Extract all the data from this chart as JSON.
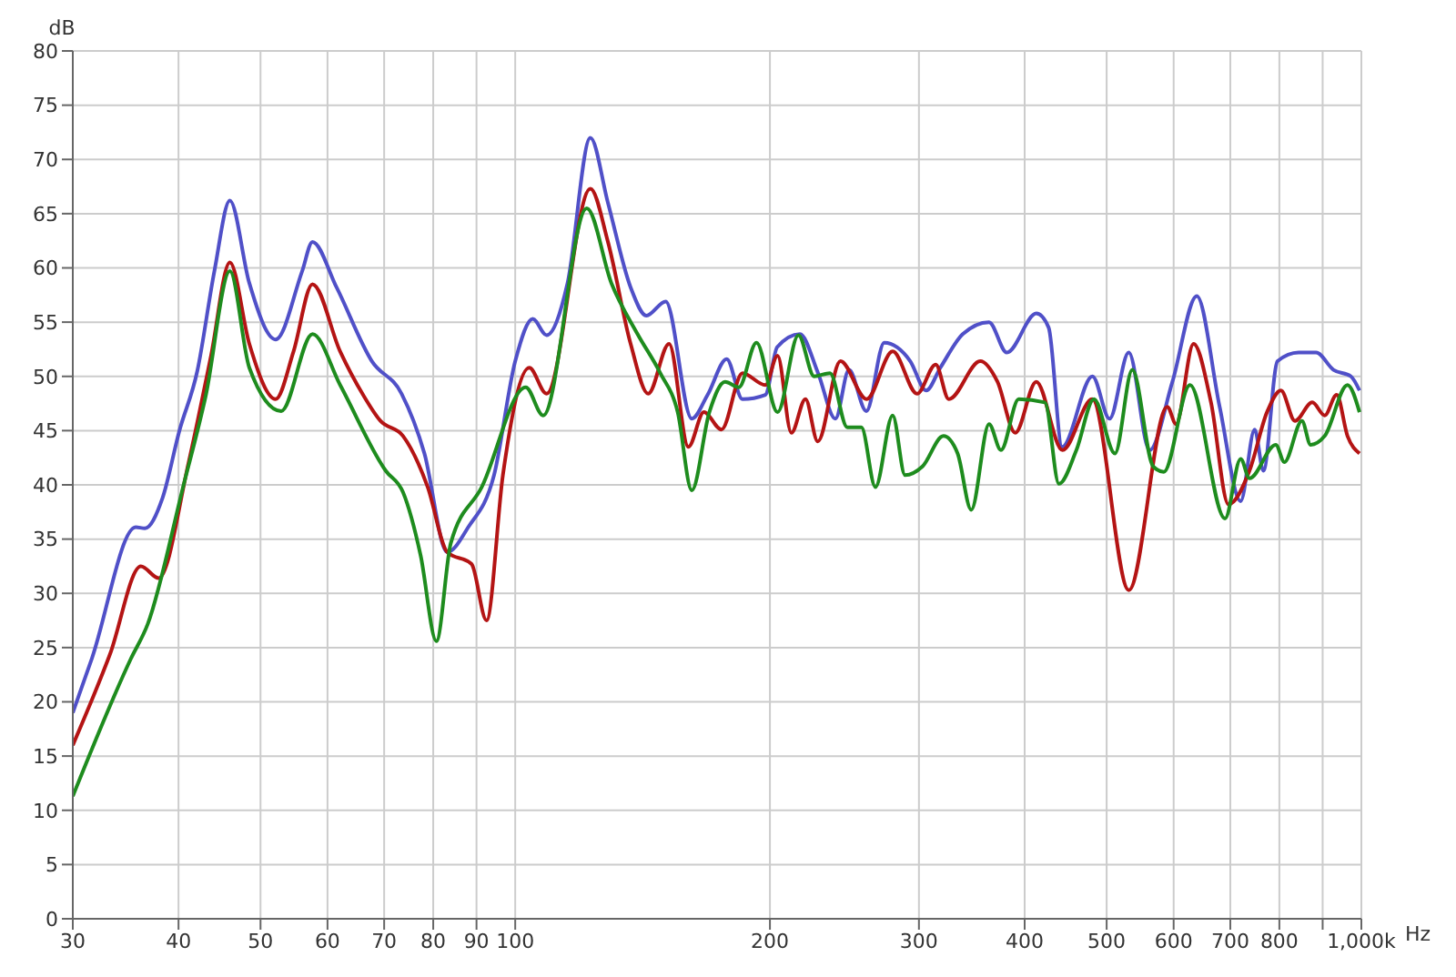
{
  "chart_data": {
    "type": "line",
    "xlabel": "Hz",
    "ylabel": "dB",
    "log": "x",
    "grid": true,
    "marker": "none",
    "line_style": "solid",
    "xlim": [
      30,
      1000
    ],
    "ylim": [
      0,
      80
    ],
    "xticks": [
      30,
      40,
      50,
      60,
      70,
      80,
      90,
      100,
      200,
      300,
      400,
      500,
      600,
      700,
      800,
      {
        "value": 900,
        "label": null
      },
      {
        "value": 1000,
        "label": "1,000k"
      }
    ],
    "yticks": [
      0,
      5,
      10,
      15,
      20,
      25,
      30,
      35,
      40,
      45,
      50,
      55,
      60,
      65,
      70,
      75,
      80
    ],
    "series": [
      {
        "color": "#5050c8",
        "x": [
          30,
          31.6,
          35.6,
          36.5,
          38.3,
          40.1,
          42.1,
          44.1,
          46,
          48.5,
          52.1,
          56,
          57.6,
          61.5,
          67.7,
          73.4,
          78.1,
          83.1,
          88,
          94.4,
          100,
          104.9,
          108.9,
          115.3,
          122.7,
          128.7,
          136.9,
          142.9,
          150.6,
          161.7,
          168.8,
          177.8,
          185.6,
          197.5,
          204,
          217,
          228,
          239,
          248,
          260,
          273,
          293,
          306,
          318,
          338,
          363,
          381,
          413,
          427,
          443,
          481,
          504,
          531,
          562,
          598,
          639,
          680,
          720,
          748,
          766,
          796,
          843,
          884,
          927,
          972,
          995
        ],
        "values": [
          19,
          24,
          36.1,
          36,
          38.8,
          45,
          50.5,
          59.7,
          66.2,
          58.6,
          53.4,
          59.7,
          62.4,
          58.2,
          51.4,
          48.4,
          42.9,
          33.8,
          36.1,
          40.9,
          51.4,
          55.3,
          53.8,
          58.6,
          72,
          66,
          58.2,
          55.6,
          56.9,
          46.1,
          48.3,
          51.6,
          47.9,
          48.3,
          52.7,
          53.9,
          50.3,
          46.1,
          50.6,
          46.8,
          53.1,
          51.4,
          48.7,
          50.8,
          53.9,
          55,
          52.2,
          55.8,
          54.5,
          43.5,
          50,
          46.1,
          52.2,
          43.2,
          49.5,
          57.4,
          47.2,
          38.5,
          45.1,
          41.3,
          51.4,
          52.2,
          52.2,
          50.6,
          50,
          48.7
        ]
      },
      {
        "color": "#b41414",
        "x": [
          30,
          33.2,
          36.1,
          37.9,
          41.1,
          43.7,
          46,
          48.5,
          52.1,
          54.7,
          57.6,
          62.1,
          66.1,
          69.3,
          73.7,
          78.8,
          83.1,
          88.8,
          92.5,
          96.7,
          103.9,
          108.9,
          122.7,
          128.7,
          136.9,
          143.6,
          152,
          160.2,
          167.1,
          175.3,
          185.6,
          197.5,
          204.2,
          212,
          220.3,
          227.8,
          242.3,
          260.2,
          279.3,
          298.5,
          314,
          325.4,
          354.5,
          371.5,
          389.9,
          412.8,
          443.4,
          480.8,
          531.1,
          589.7,
          603.9,
          633.4,
          664.2,
          696.6,
          737.5,
          773.5,
          803.5,
          834.6,
          875,
          905,
          935,
          963,
          995
        ],
        "values": [
          16,
          24.4,
          32.5,
          31.4,
          42,
          51.9,
          60.5,
          53,
          47.9,
          52.3,
          58.5,
          52.3,
          48.3,
          45.9,
          44.5,
          39.8,
          33.8,
          32.7,
          27.5,
          40.9,
          50.8,
          48.4,
          67.3,
          62.4,
          53,
          48.4,
          53,
          43.5,
          46.7,
          45.1,
          50.3,
          49.2,
          51.9,
          44.8,
          47.9,
          44,
          51.4,
          47.9,
          52.3,
          48.4,
          51.1,
          47.9,
          51.4,
          49.5,
          44.8,
          49.5,
          43.2,
          47.9,
          30.3,
          47.2,
          45.6,
          53,
          47.6,
          38.2,
          41.3,
          46.7,
          48.7,
          45.9,
          47.6,
          46.4,
          48.3,
          44.5,
          42.9
        ]
      },
      {
        "color": "#1e8c1e",
        "x": [
          30,
          35.1,
          36.8,
          40.5,
          43.1,
          46,
          48.5,
          52.9,
          57.6,
          62.1,
          70.3,
          73.7,
          77.3,
          80.7,
          83.9,
          91.3,
          102.9,
          107.9,
          121.5,
          129.9,
          139.5,
          148.4,
          155.6,
          161.7,
          169.6,
          177,
          183.8,
          192.8,
          204.2,
          216.1,
          225.6,
          235.5,
          246.9,
          256.5,
          266.5,
          279.3,
          288.9,
          302.9,
          320.7,
          333.3,
          345.9,
          363.1,
          375,
          393.6,
          422.7,
          439.2,
          460.5,
          483.1,
          511.4,
          536.2,
          567.5,
          584.1,
          627.3,
          690,
          720.1,
          737.5,
          792.2,
          811,
          850.7,
          871,
          905,
          963,
          995
        ],
        "values": [
          11.3,
          23.9,
          27.2,
          39.8,
          48.3,
          59.7,
          50.8,
          46.8,
          53.9,
          49.2,
          41.3,
          39.3,
          33.5,
          25.6,
          34.6,
          39.8,
          49,
          46.4,
          65.5,
          58.6,
          53.9,
          50.3,
          46.7,
          39.5,
          46.7,
          49.5,
          49,
          53.1,
          46.7,
          53.8,
          50,
          50.3,
          45.3,
          45.3,
          39.8,
          46.4,
          40.9,
          41.7,
          44.5,
          42.9,
          37.7,
          45.6,
          43.2,
          47.9,
          47.6,
          40.1,
          43.2,
          47.9,
          42.9,
          50.6,
          41.7,
          41.2,
          49.2,
          36.9,
          42.4,
          40.6,
          43.7,
          42.1,
          45.9,
          43.7,
          44.5,
          49.2,
          46.7
        ]
      }
    ]
  }
}
